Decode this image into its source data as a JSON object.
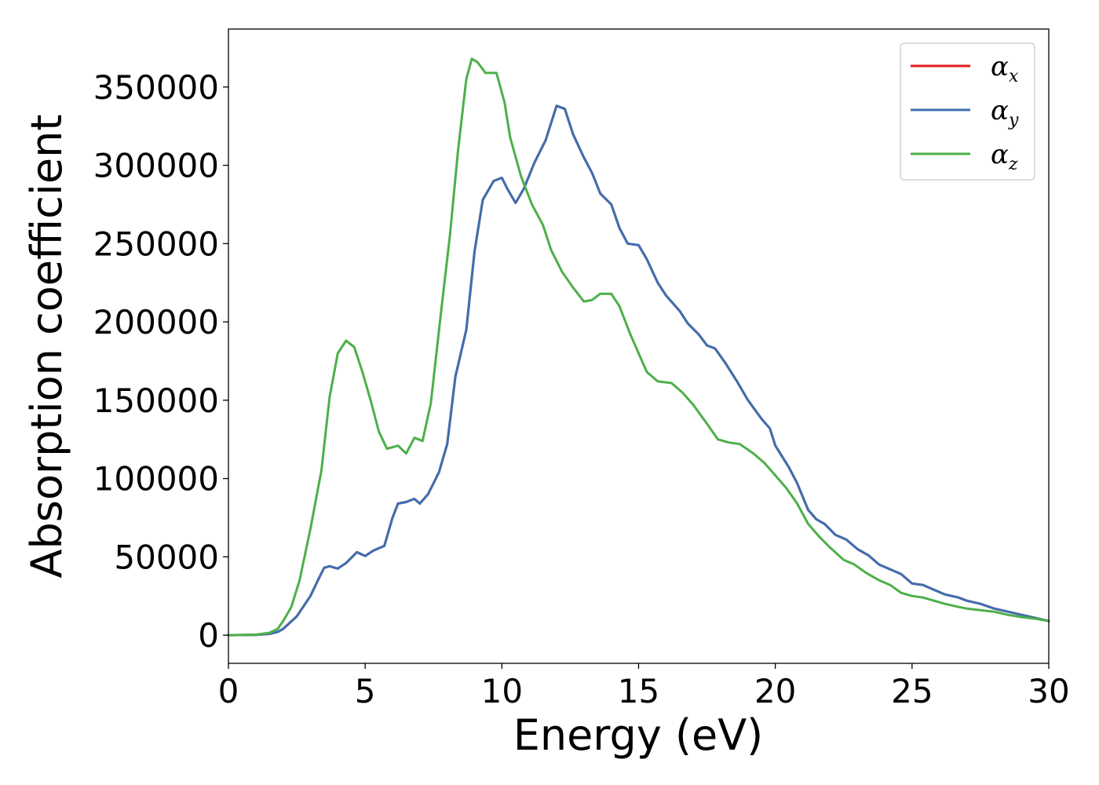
{
  "chart_data": {
    "type": "line",
    "title": "",
    "xlabel": "Energy (eV)",
    "ylabel": "Absorption coefficient",
    "xlim": [
      0,
      30
    ],
    "ylim": [
      -18000,
      387000
    ],
    "xticks": [
      0,
      5,
      10,
      15,
      20,
      25,
      30
    ],
    "yticks": [
      0,
      50000,
      100000,
      150000,
      200000,
      250000,
      300000,
      350000
    ],
    "grid": false,
    "legend_position": "top-right",
    "series": [
      {
        "name": "x",
        "color": "#e41a1c",
        "points": [
          [
            0,
            0
          ],
          [
            1,
            200
          ],
          [
            1.5,
            800
          ],
          [
            1.8,
            2000
          ],
          [
            2,
            4000
          ],
          [
            2.5,
            12000
          ],
          [
            3,
            25000
          ],
          [
            3.3,
            36000
          ],
          [
            3.5,
            43000
          ],
          [
            3.7,
            44000
          ],
          [
            4,
            42500
          ],
          [
            4.3,
            46000
          ],
          [
            4.7,
            53000
          ],
          [
            5,
            50500
          ],
          [
            5.3,
            54000
          ],
          [
            5.7,
            57000
          ],
          [
            6,
            75000
          ],
          [
            6.2,
            84000
          ],
          [
            6.5,
            85000
          ],
          [
            6.8,
            87000
          ],
          [
            7,
            84000
          ],
          [
            7.3,
            90000
          ],
          [
            7.7,
            104000
          ],
          [
            8,
            122000
          ],
          [
            8.3,
            165000
          ],
          [
            8.7,
            195000
          ],
          [
            9,
            245000
          ],
          [
            9.3,
            278000
          ],
          [
            9.7,
            290000
          ],
          [
            10,
            292000
          ],
          [
            10.2,
            285000
          ],
          [
            10.5,
            276000
          ],
          [
            10.8,
            285000
          ],
          [
            11.2,
            302000
          ],
          [
            11.6,
            316000
          ],
          [
            12,
            338000
          ],
          [
            12.3,
            336000
          ],
          [
            12.6,
            320000
          ],
          [
            13,
            305000
          ],
          [
            13.3,
            295000
          ],
          [
            13.6,
            282000
          ],
          [
            14,
            275000
          ],
          [
            14.3,
            260000
          ],
          [
            14.6,
            250000
          ],
          [
            15,
            249000
          ],
          [
            15.3,
            240000
          ],
          [
            15.7,
            225000
          ],
          [
            16,
            217000
          ],
          [
            16.5,
            207000
          ],
          [
            16.8,
            199000
          ],
          [
            17.2,
            192000
          ],
          [
            17.5,
            185000
          ],
          [
            17.8,
            183000
          ],
          [
            18.2,
            173000
          ],
          [
            18.6,
            162000
          ],
          [
            19,
            150000
          ],
          [
            19.5,
            138000
          ],
          [
            19.8,
            132000
          ],
          [
            20,
            121000
          ],
          [
            20.5,
            107000
          ],
          [
            20.8,
            97000
          ],
          [
            21.2,
            80000
          ],
          [
            21.5,
            74000
          ],
          [
            21.8,
            71000
          ],
          [
            22.2,
            64000
          ],
          [
            22.6,
            61000
          ],
          [
            23,
            55000
          ],
          [
            23.4,
            51000
          ],
          [
            23.8,
            45000
          ],
          [
            24.2,
            42000
          ],
          [
            24.6,
            39000
          ],
          [
            25,
            33000
          ],
          [
            25.4,
            32000
          ],
          [
            25.8,
            29000
          ],
          [
            26.2,
            26000
          ],
          [
            26.7,
            24000
          ],
          [
            27,
            22000
          ],
          [
            27.5,
            20000
          ],
          [
            28,
            17000
          ],
          [
            28.5,
            15000
          ],
          [
            29,
            13000
          ],
          [
            29.5,
            11000
          ],
          [
            30,
            9000
          ]
        ]
      },
      {
        "name": "y",
        "color": "#3d6fb0",
        "points": [
          [
            0,
            0
          ],
          [
            1,
            200
          ],
          [
            1.5,
            800
          ],
          [
            1.8,
            2000
          ],
          [
            2,
            4000
          ],
          [
            2.5,
            12000
          ],
          [
            3,
            25000
          ],
          [
            3.3,
            36000
          ],
          [
            3.5,
            43000
          ],
          [
            3.7,
            44000
          ],
          [
            4,
            42500
          ],
          [
            4.3,
            46000
          ],
          [
            4.7,
            53000
          ],
          [
            5,
            50500
          ],
          [
            5.3,
            54000
          ],
          [
            5.7,
            57000
          ],
          [
            6,
            75000
          ],
          [
            6.2,
            84000
          ],
          [
            6.5,
            85000
          ],
          [
            6.8,
            87000
          ],
          [
            7,
            84000
          ],
          [
            7.3,
            90000
          ],
          [
            7.7,
            104000
          ],
          [
            8,
            122000
          ],
          [
            8.3,
            165000
          ],
          [
            8.7,
            195000
          ],
          [
            9,
            245000
          ],
          [
            9.3,
            278000
          ],
          [
            9.7,
            290000
          ],
          [
            10,
            292000
          ],
          [
            10.2,
            285000
          ],
          [
            10.5,
            276000
          ],
          [
            10.8,
            285000
          ],
          [
            11.2,
            302000
          ],
          [
            11.6,
            316000
          ],
          [
            12,
            338000
          ],
          [
            12.3,
            336000
          ],
          [
            12.6,
            320000
          ],
          [
            13,
            305000
          ],
          [
            13.3,
            295000
          ],
          [
            13.6,
            282000
          ],
          [
            14,
            275000
          ],
          [
            14.3,
            260000
          ],
          [
            14.6,
            250000
          ],
          [
            15,
            249000
          ],
          [
            15.3,
            240000
          ],
          [
            15.7,
            225000
          ],
          [
            16,
            217000
          ],
          [
            16.5,
            207000
          ],
          [
            16.8,
            199000
          ],
          [
            17.2,
            192000
          ],
          [
            17.5,
            185000
          ],
          [
            17.8,
            183000
          ],
          [
            18.2,
            173000
          ],
          [
            18.6,
            162000
          ],
          [
            19,
            150000
          ],
          [
            19.5,
            138000
          ],
          [
            19.8,
            132000
          ],
          [
            20,
            121000
          ],
          [
            20.5,
            107000
          ],
          [
            20.8,
            97000
          ],
          [
            21.2,
            80000
          ],
          [
            21.5,
            74000
          ],
          [
            21.8,
            71000
          ],
          [
            22.2,
            64000
          ],
          [
            22.6,
            61000
          ],
          [
            23,
            55000
          ],
          [
            23.4,
            51000
          ],
          [
            23.8,
            45000
          ],
          [
            24.2,
            42000
          ],
          [
            24.6,
            39000
          ],
          [
            25,
            33000
          ],
          [
            25.4,
            32000
          ],
          [
            25.8,
            29000
          ],
          [
            26.2,
            26000
          ],
          [
            26.7,
            24000
          ],
          [
            27,
            22000
          ],
          [
            27.5,
            20000
          ],
          [
            28,
            17000
          ],
          [
            28.5,
            15000
          ],
          [
            29,
            13000
          ],
          [
            29.5,
            11000
          ],
          [
            30,
            9000
          ]
        ]
      },
      {
        "name": "z",
        "color": "#4daf4a",
        "points": [
          [
            0,
            0
          ],
          [
            1,
            300
          ],
          [
            1.5,
            1500
          ],
          [
            1.8,
            4000
          ],
          [
            2,
            9000
          ],
          [
            2.3,
            18000
          ],
          [
            2.6,
            35000
          ],
          [
            3,
            68000
          ],
          [
            3.4,
            105000
          ],
          [
            3.7,
            152000
          ],
          [
            4,
            180000
          ],
          [
            4.3,
            188000
          ],
          [
            4.6,
            184000
          ],
          [
            4.9,
            168000
          ],
          [
            5.2,
            150000
          ],
          [
            5.5,
            130000
          ],
          [
            5.8,
            119000
          ],
          [
            6,
            120000
          ],
          [
            6.2,
            121000
          ],
          [
            6.5,
            116000
          ],
          [
            6.8,
            126000
          ],
          [
            7.1,
            124000
          ],
          [
            7.4,
            148000
          ],
          [
            7.8,
            210000
          ],
          [
            8.1,
            255000
          ],
          [
            8.4,
            310000
          ],
          [
            8.7,
            355000
          ],
          [
            8.9,
            368000
          ],
          [
            9.1,
            366000
          ],
          [
            9.4,
            359000
          ],
          [
            9.8,
            359000
          ],
          [
            10.1,
            340000
          ],
          [
            10.3,
            318000
          ],
          [
            10.7,
            293000
          ],
          [
            11.1,
            275000
          ],
          [
            11.5,
            262000
          ],
          [
            11.8,
            246000
          ],
          [
            12.2,
            232000
          ],
          [
            12.6,
            222000
          ],
          [
            13,
            213000
          ],
          [
            13.3,
            214000
          ],
          [
            13.6,
            218000
          ],
          [
            14,
            218000
          ],
          [
            14.3,
            210000
          ],
          [
            14.7,
            192000
          ],
          [
            15,
            180000
          ],
          [
            15.3,
            168000
          ],
          [
            15.7,
            162000
          ],
          [
            16.2,
            161000
          ],
          [
            16.6,
            155000
          ],
          [
            17,
            147000
          ],
          [
            17.5,
            135000
          ],
          [
            17.9,
            125000
          ],
          [
            18.3,
            123000
          ],
          [
            18.7,
            122000
          ],
          [
            19.2,
            116000
          ],
          [
            19.6,
            110000
          ],
          [
            20,
            102000
          ],
          [
            20.4,
            94000
          ],
          [
            20.8,
            84000
          ],
          [
            21.2,
            71000
          ],
          [
            21.6,
            63000
          ],
          [
            22,
            56000
          ],
          [
            22.5,
            48000
          ],
          [
            22.9,
            45000
          ],
          [
            23.3,
            40000
          ],
          [
            23.8,
            35000
          ],
          [
            24.2,
            32000
          ],
          [
            24.6,
            27000
          ],
          [
            25,
            25000
          ],
          [
            25.4,
            24000
          ],
          [
            25.8,
            22000
          ],
          [
            26.2,
            20000
          ],
          [
            26.7,
            18000
          ],
          [
            27,
            17000
          ],
          [
            27.5,
            16000
          ],
          [
            28,
            15000
          ],
          [
            28.5,
            13000
          ],
          [
            29,
            11500
          ],
          [
            29.5,
            10500
          ],
          [
            30,
            9000
          ]
        ]
      }
    ]
  }
}
